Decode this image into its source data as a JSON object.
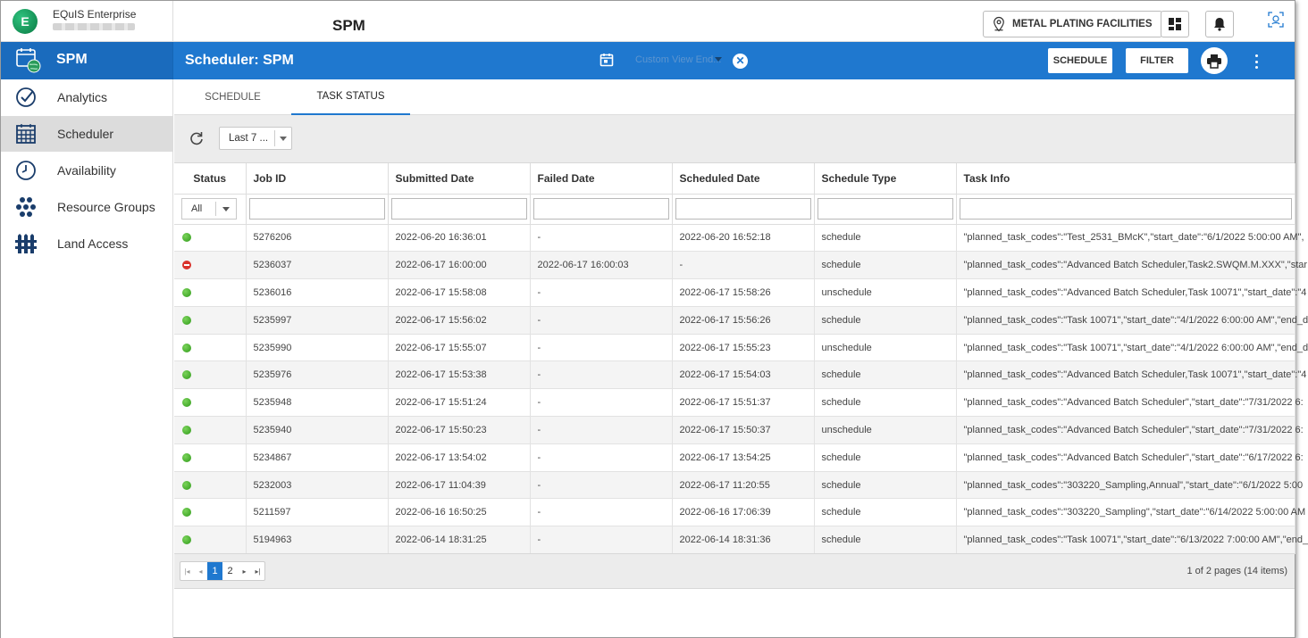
{
  "brand": {
    "name": "EQuIS Enterprise",
    "logo_letter": "E"
  },
  "app_title": "SPM",
  "facility_button": {
    "label": "METAL PLATING FACILITIES",
    "icon": "location-pin-icon"
  },
  "side_header": {
    "title": "SPM",
    "icon": "calendar-globe-icon"
  },
  "page_title": "Scheduler: SPM",
  "view_select": {
    "placeholder": "Custom View End..."
  },
  "header_buttons": {
    "schedule": "SCHEDULE",
    "filter": "FILTER"
  },
  "sidebar": {
    "items": [
      {
        "label": "Analytics",
        "icon": "check-circle-icon"
      },
      {
        "label": "Scheduler",
        "icon": "calendar-grid-icon",
        "active": true
      },
      {
        "label": "Availability",
        "icon": "clock-icon"
      },
      {
        "label": "Resource Groups",
        "icon": "dots-cluster-icon"
      },
      {
        "label": "Land Access",
        "icon": "fence-icon"
      }
    ]
  },
  "tabs": [
    {
      "label": "SCHEDULE",
      "active": false
    },
    {
      "label": "TASK STATUS",
      "active": true
    }
  ],
  "toolbar": {
    "range_value": "Last 7 ..."
  },
  "grid": {
    "columns": [
      "Status",
      "Job ID",
      "Submitted Date",
      "Failed Date",
      "Scheduled Date",
      "Schedule Type",
      "Task Info"
    ],
    "status_filter": "All",
    "rows": [
      {
        "status": "ok",
        "job_id": "5276206",
        "submitted": "2022-06-20 16:36:01",
        "failed": "-",
        "scheduled": "2022-06-20 16:52:18",
        "type": "schedule",
        "info": "\"planned_task_codes\":\"Test_2531_BMcK\",\"start_date\":\"6/1/2022 5:00:00 AM\","
      },
      {
        "status": "error",
        "job_id": "5236037",
        "submitted": "2022-06-17 16:00:00",
        "failed": "2022-06-17 16:00:03",
        "scheduled": "-",
        "type": "schedule",
        "info": "\"planned_task_codes\":\"Advanced Batch Scheduler,Task2.SWQM.M.XXX\",\"star"
      },
      {
        "status": "ok",
        "job_id": "5236016",
        "submitted": "2022-06-17 15:58:08",
        "failed": "-",
        "scheduled": "2022-06-17 15:58:26",
        "type": "unschedule",
        "info": "\"planned_task_codes\":\"Advanced Batch Scheduler,Task 10071\",\"start_date\":\"4"
      },
      {
        "status": "ok",
        "job_id": "5235997",
        "submitted": "2022-06-17 15:56:02",
        "failed": "-",
        "scheduled": "2022-06-17 15:56:26",
        "type": "schedule",
        "info": "\"planned_task_codes\":\"Task 10071\",\"start_date\":\"4/1/2022 6:00:00 AM\",\"end_d"
      },
      {
        "status": "ok",
        "job_id": "5235990",
        "submitted": "2022-06-17 15:55:07",
        "failed": "-",
        "scheduled": "2022-06-17 15:55:23",
        "type": "unschedule",
        "info": "\"planned_task_codes\":\"Task 10071\",\"start_date\":\"4/1/2022 6:00:00 AM\",\"end_d"
      },
      {
        "status": "ok",
        "job_id": "5235976",
        "submitted": "2022-06-17 15:53:38",
        "failed": "-",
        "scheduled": "2022-06-17 15:54:03",
        "type": "schedule",
        "info": "\"planned_task_codes\":\"Advanced Batch Scheduler,Task 10071\",\"start_date\":\"4"
      },
      {
        "status": "ok",
        "job_id": "5235948",
        "submitted": "2022-06-17 15:51:24",
        "failed": "-",
        "scheduled": "2022-06-17 15:51:37",
        "type": "schedule",
        "info": "\"planned_task_codes\":\"Advanced Batch Scheduler\",\"start_date\":\"7/31/2022 6:"
      },
      {
        "status": "ok",
        "job_id": "5235940",
        "submitted": "2022-06-17 15:50:23",
        "failed": "-",
        "scheduled": "2022-06-17 15:50:37",
        "type": "unschedule",
        "info": "\"planned_task_codes\":\"Advanced Batch Scheduler\",\"start_date\":\"7/31/2022 6:"
      },
      {
        "status": "ok",
        "job_id": "5234867",
        "submitted": "2022-06-17 13:54:02",
        "failed": "-",
        "scheduled": "2022-06-17 13:54:25",
        "type": "schedule",
        "info": "\"planned_task_codes\":\"Advanced Batch Scheduler\",\"start_date\":\"6/17/2022 6:"
      },
      {
        "status": "ok",
        "job_id": "5232003",
        "submitted": "2022-06-17 11:04:39",
        "failed": "-",
        "scheduled": "2022-06-17 11:20:55",
        "type": "schedule",
        "info": "\"planned_task_codes\":\"303220_Sampling,Annual\",\"start_date\":\"6/1/2022 5:00"
      },
      {
        "status": "ok",
        "job_id": "5211597",
        "submitted": "2022-06-16 16:50:25",
        "failed": "-",
        "scheduled": "2022-06-16 17:06:39",
        "type": "schedule",
        "info": "\"planned_task_codes\":\"303220_Sampling\",\"start_date\":\"6/14/2022 5:00:00 AM"
      },
      {
        "status": "ok",
        "job_id": "5194963",
        "submitted": "2022-06-14 18:31:25",
        "failed": "-",
        "scheduled": "2022-06-14 18:31:36",
        "type": "schedule",
        "info": "\"planned_task_codes\":\"Task 10071\",\"start_date\":\"6/13/2022 7:00:00 AM\",\"end_"
      }
    ]
  },
  "pager": {
    "pages": [
      "1",
      "2"
    ],
    "current": "1",
    "info": "1 of 2 pages (14 items)"
  },
  "colors": {
    "primary": "#1f78cf",
    "success": "#2f9a19",
    "error": "#d9322b"
  }
}
